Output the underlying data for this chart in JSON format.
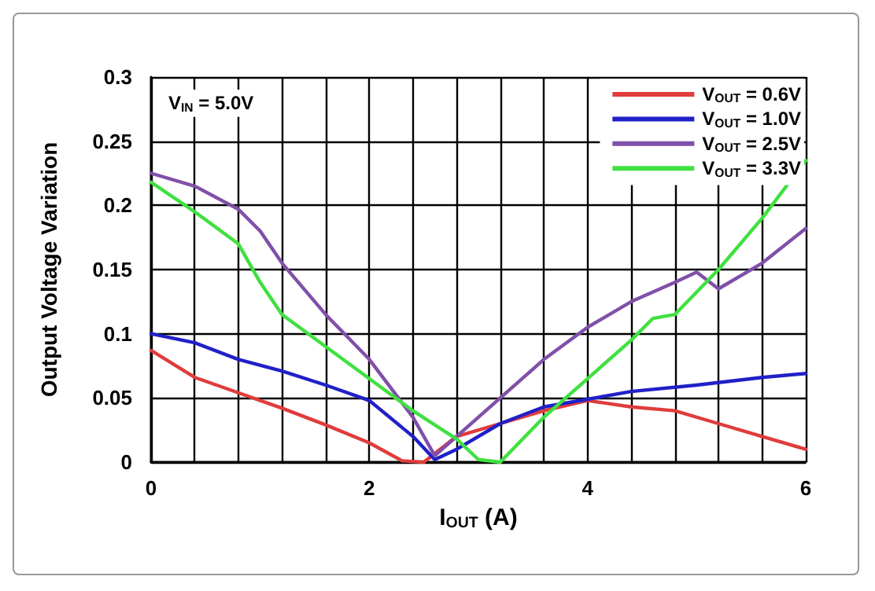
{
  "chart_data": {
    "type": "line",
    "xlabel": "I$_{OUT}$ (A)",
    "ylabel": "Output Voltage Variation",
    "annotations": [
      "V$_{IN}$ = 5.0V"
    ],
    "xlim": [
      0,
      6
    ],
    "xticks": [
      0,
      {
        "value": 0.4,
        "label": null
      },
      {
        "value": 0.8,
        "label": null
      },
      {
        "value": 1.2,
        "label": null
      },
      {
        "value": 1.6,
        "label": null
      },
      2,
      {
        "value": 2.4,
        "label": null
      },
      {
        "value": 2.8,
        "label": null
      },
      {
        "value": 3.2,
        "label": null
      },
      {
        "value": 3.6,
        "label": null
      },
      4,
      {
        "value": 4.4,
        "label": null
      },
      {
        "value": 4.8,
        "label": null
      },
      {
        "value": 5.2,
        "label": null
      },
      {
        "value": 5.6,
        "label": null
      },
      6
    ],
    "ylim": [
      0,
      0.3
    ],
    "yticks": [
      0,
      0.05,
      0.1,
      0.15,
      0.2,
      0.25,
      0.3
    ],
    "grid": true,
    "legend": "top right",
    "marker": "none",
    "line_style": "solid",
    "series": [
      {
        "name": "V$_{OUT}$ = 0.6V",
        "color": "#e03c3c",
        "x": [
          0,
          0.4,
          0.8,
          1.2,
          1.6,
          2.0,
          2.3,
          2.5,
          2.8,
          3.2,
          3.6,
          4.0,
          4.4,
          4.8,
          5.2,
          5.6,
          6.0
        ],
        "values": [
          0.087,
          0.066,
          0.054,
          0.042,
          0.029,
          0.015,
          0.001,
          0,
          0.02,
          0.03,
          0.04,
          0.048,
          0.043,
          0.04,
          0.03,
          0.02,
          0.01
        ]
      },
      {
        "name": "V$_{OUT}$ = 1.0V",
        "color": "#2020c8",
        "x": [
          0,
          0.4,
          0.8,
          1.2,
          1.6,
          2.0,
          2.4,
          2.6,
          2.8,
          3.2,
          3.6,
          4.0,
          4.4,
          5.0,
          5.6,
          6.0
        ],
        "values": [
          0.1,
          0.093,
          0.08,
          0.071,
          0.06,
          0.048,
          0.02,
          0.002,
          0.01,
          0.03,
          0.043,
          0.049,
          0.055,
          0.06,
          0.066,
          0.069
        ]
      },
      {
        "name": "V$_{OUT}$ = 2.5V",
        "color": "#8050a8",
        "x": [
          0,
          0.4,
          0.8,
          1.0,
          1.2,
          1.6,
          2.0,
          2.4,
          2.6,
          2.8,
          3.2,
          3.6,
          4.0,
          4.4,
          4.8,
          5.0,
          5.2,
          5.6,
          6.0
        ],
        "values": [
          0.225,
          0.215,
          0.197,
          0.18,
          0.155,
          0.115,
          0.08,
          0.035,
          0.005,
          0.02,
          0.05,
          0.08,
          0.105,
          0.125,
          0.14,
          0.148,
          0.135,
          0.155,
          0.182
        ]
      },
      {
        "name": "V$_{OUT}$ = 3.3V",
        "color": "#40e040",
        "x": [
          0,
          0.4,
          0.8,
          1.0,
          1.2,
          1.6,
          2.0,
          2.4,
          2.8,
          3.0,
          3.2,
          3.6,
          4.0,
          4.4,
          4.6,
          4.8,
          5.2,
          5.6,
          6.0
        ],
        "values": [
          0.218,
          0.195,
          0.17,
          0.14,
          0.115,
          0.09,
          0.065,
          0.04,
          0.018,
          0.002,
          0,
          0.035,
          0.065,
          0.095,
          0.112,
          0.115,
          0.15,
          0.19,
          0.235
        ]
      }
    ]
  }
}
